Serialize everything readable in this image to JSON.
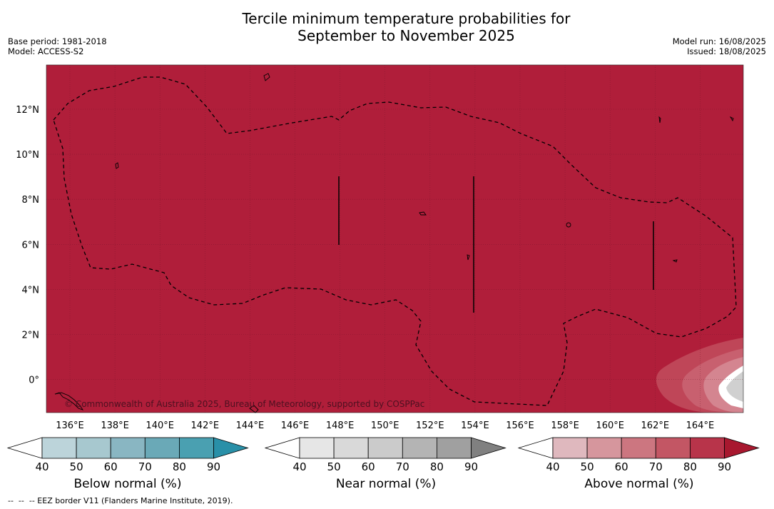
{
  "title": {
    "line1": "Tercile minimum temperature probabilities for",
    "line2": "September to November 2025"
  },
  "meta_left": {
    "base_period": "Base period: 1981-2018",
    "model": "Model: ACCESS-S2"
  },
  "meta_right": {
    "model_run": "Model run: 16/08/2025",
    "issued": "Issued: 18/08/2025"
  },
  "map": {
    "copyright": "© Commonwealth of Australia 2025, Bureau of Meteorology, supported by COSPPac",
    "lon_ticks": [
      "136°E",
      "138°E",
      "140°E",
      "142°E",
      "144°E",
      "146°E",
      "148°E",
      "150°E",
      "152°E",
      "154°E",
      "156°E",
      "158°E",
      "160°E",
      "162°E",
      "164°E"
    ],
    "lat_ticks": [
      "12°N",
      "10°N",
      "8°N",
      "6°N",
      "4°N",
      "2°N",
      "0°"
    ],
    "fill_color": "#b01e3a",
    "dominant_category": "Above normal",
    "dominant_probability_range": "90"
  },
  "colorbars": [
    {
      "title": "Below normal (%)",
      "ticks": [
        "40",
        "50",
        "60",
        "70",
        "80",
        "90"
      ],
      "colors": [
        "#ffffff",
        "#bcd4da",
        "#a7c8cf",
        "#89b6c2",
        "#6aa9b7",
        "#4aa0b1",
        "#2990a8"
      ]
    },
    {
      "title": "Near normal (%)",
      "ticks": [
        "40",
        "50",
        "60",
        "70",
        "80",
        "90"
      ],
      "colors": [
        "#ffffff",
        "#e6e6e6",
        "#d9d9d9",
        "#cbcbcb",
        "#b4b4b4",
        "#a0a0a0",
        "#808080"
      ]
    },
    {
      "title": "Above normal (%)",
      "ticks": [
        "40",
        "50",
        "60",
        "70",
        "80",
        "90"
      ],
      "colors": [
        "#ffffff",
        "#dfb8be",
        "#d6969d",
        "#cc7680",
        "#c35664",
        "#b8344a",
        "#a8182f"
      ]
    }
  ],
  "footnote": "--  --  -- EEZ border V11 (Flanders Marine Institute, 2019)."
}
